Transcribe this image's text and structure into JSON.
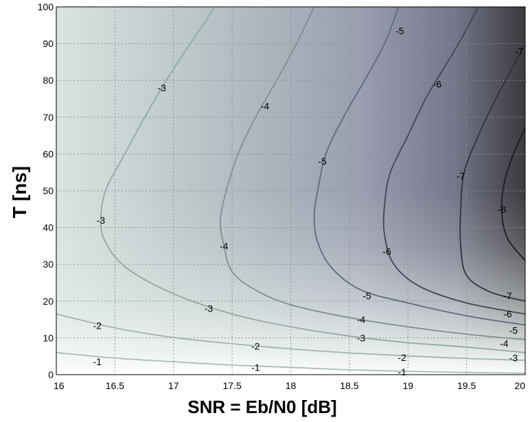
{
  "chart_data": {
    "type": "contour",
    "title": "",
    "xlabel": "SNR = Eb/N0 [dB]",
    "ylabel": "T  [ns]",
    "xlim": [
      16,
      20
    ],
    "ylim": [
      0,
      100
    ],
    "xticks": [
      "16",
      "16.5",
      "17",
      "17.5",
      "18",
      "18.5",
      "19",
      "19.5",
      "20"
    ],
    "yticks": [
      "0",
      "10",
      "20",
      "30",
      "40",
      "50",
      "60",
      "70",
      "80",
      "90",
      "100"
    ],
    "grid": true,
    "colormap": {
      "low": "#ffffff",
      "mid": "#aeb2c0",
      "high": "#3a3a3e"
    },
    "contours": [
      {
        "level": -1,
        "color": "#a9bdb5",
        "points": [
          [
            16,
            6
          ],
          [
            16.5,
            4.5
          ],
          [
            17,
            3.5
          ],
          [
            17.5,
            2.6
          ],
          [
            18,
            2
          ],
          [
            18.5,
            1.3
          ],
          [
            19,
            0.9
          ],
          [
            19.5,
            0.6
          ],
          [
            20,
            0.4
          ]
        ]
      },
      {
        "level": -2,
        "color": "#9fb5ae",
        "points": [
          [
            16,
            16.5
          ],
          [
            16.5,
            12.7
          ],
          [
            17,
            10.1
          ],
          [
            17.5,
            8.4
          ],
          [
            18,
            7
          ],
          [
            18.5,
            5.9
          ],
          [
            19,
            5.1
          ],
          [
            19.5,
            4.4
          ],
          [
            20,
            3.9
          ]
        ]
      },
      {
        "level": -3,
        "color": "#92a8a3",
        "points": [
          [
            20,
            6
          ],
          [
            19.5,
            7.5
          ],
          [
            19,
            8.7
          ],
          [
            18.5,
            10.5
          ],
          [
            18,
            13
          ],
          [
            17.5,
            16.5
          ],
          [
            17,
            22
          ],
          [
            16.6,
            29
          ],
          [
            16.42,
            36
          ],
          [
            16.38,
            42
          ],
          [
            16.42,
            50
          ],
          [
            16.55,
            58
          ],
          [
            16.72,
            68
          ],
          [
            16.9,
            78
          ],
          [
            17.08,
            87
          ],
          [
            17.25,
            95
          ],
          [
            17.35,
            100
          ]
        ]
      },
      {
        "level": -4,
        "color": "#7f8f92",
        "points": [
          [
            20,
            9.5
          ],
          [
            19.5,
            11
          ],
          [
            19,
            13
          ],
          [
            18.5,
            15.5
          ],
          [
            18,
            19
          ],
          [
            17.7,
            23
          ],
          [
            17.5,
            28
          ],
          [
            17.43,
            35
          ],
          [
            17.4,
            42
          ],
          [
            17.45,
            50
          ],
          [
            17.55,
            60
          ],
          [
            17.7,
            70
          ],
          [
            17.88,
            80
          ],
          [
            18.05,
            90
          ],
          [
            18.2,
            100
          ]
        ]
      },
      {
        "level": -5,
        "color": "#5e6a7c",
        "points": [
          [
            20,
            13.5
          ],
          [
            19.5,
            16
          ],
          [
            19,
            19.5
          ],
          [
            18.6,
            23
          ],
          [
            18.35,
            29
          ],
          [
            18.23,
            36
          ],
          [
            18.2,
            43
          ],
          [
            18.23,
            50
          ],
          [
            18.3,
            60
          ],
          [
            18.45,
            70
          ],
          [
            18.63,
            80
          ],
          [
            18.8,
            90
          ],
          [
            18.92,
            100
          ]
        ]
      },
      {
        "level": -6,
        "color": "#3f4657",
        "points": [
          [
            20,
            16.5
          ],
          [
            19.5,
            19.5
          ],
          [
            19.1,
            24
          ],
          [
            18.88,
            30
          ],
          [
            18.8,
            38
          ],
          [
            18.8,
            46
          ],
          [
            18.85,
            55
          ],
          [
            19,
            65
          ],
          [
            19.15,
            75
          ],
          [
            19.3,
            83
          ],
          [
            19.45,
            91
          ],
          [
            19.6,
            100
          ]
        ]
      },
      {
        "level": -7,
        "color": "#2e323c",
        "points": [
          [
            20,
            20
          ],
          [
            19.7,
            22.5
          ],
          [
            19.5,
            27
          ],
          [
            19.45,
            35
          ],
          [
            19.45,
            45
          ],
          [
            19.48,
            55
          ],
          [
            19.6,
            65
          ],
          [
            19.75,
            75
          ],
          [
            19.9,
            84
          ],
          [
            20,
            90
          ]
        ]
      },
      {
        "level": -8,
        "color": "#1c1c20",
        "points": [
          [
            20,
            31
          ],
          [
            19.85,
            37
          ],
          [
            19.8,
            44
          ],
          [
            19.82,
            52
          ],
          [
            19.9,
            60
          ],
          [
            20,
            67
          ]
        ]
      }
    ],
    "contour_labels": [
      {
        "text": "-1",
        "x": 16.35,
        "y": 3.5
      },
      {
        "text": "-1",
        "x": 17.7,
        "y": 2
      },
      {
        "text": "-1",
        "x": 18.95,
        "y": 0.7
      },
      {
        "text": "-2",
        "x": 16.35,
        "y": 13.3
      },
      {
        "text": "-2",
        "x": 17.7,
        "y": 7.7
      },
      {
        "text": "-2",
        "x": 18.95,
        "y": 4.7
      },
      {
        "text": "-3",
        "x": 16.38,
        "y": 42
      },
      {
        "text": "-3",
        "x": 16.9,
        "y": 78
      },
      {
        "text": "-3",
        "x": 17.3,
        "y": 18
      },
      {
        "text": "-3",
        "x": 18.6,
        "y": 10
      },
      {
        "text": "-3",
        "x": 19.9,
        "y": 4.6
      },
      {
        "text": "-4",
        "x": 17.43,
        "y": 35
      },
      {
        "text": "-4",
        "x": 17.78,
        "y": 73
      },
      {
        "text": "-4",
        "x": 18.6,
        "y": 15
      },
      {
        "text": "-4",
        "x": 19.82,
        "y": 8.5
      },
      {
        "text": "-5",
        "x": 18.27,
        "y": 58
      },
      {
        "text": "-5",
        "x": 18.65,
        "y": 21.5
      },
      {
        "text": "-5",
        "x": 18.93,
        "y": 93.5
      },
      {
        "text": "-5",
        "x": 19.9,
        "y": 12
      },
      {
        "text": "-6",
        "x": 18.82,
        "y": 33.5
      },
      {
        "text": "-6",
        "x": 19.25,
        "y": 79
      },
      {
        "text": "-6",
        "x": 19.85,
        "y": 16.5
      },
      {
        "text": "-7",
        "x": 19.45,
        "y": 54
      },
      {
        "text": "-7",
        "x": 19.85,
        "y": 21.5
      },
      {
        "text": "-7",
        "x": 19.95,
        "y": 88
      },
      {
        "text": "-8",
        "x": 19.8,
        "y": 45
      }
    ]
  }
}
